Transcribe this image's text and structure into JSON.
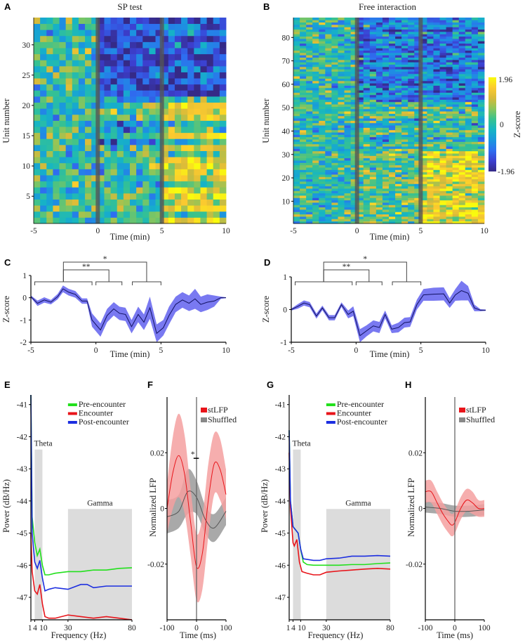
{
  "panels": {
    "A": "A",
    "B": "B",
    "C": "C",
    "D": "D",
    "E": "E",
    "F": "F",
    "G": "G",
    "H": "H"
  },
  "colorbar": {
    "label": "Z-score",
    "ticks": [
      "1.96",
      "0",
      "-1.96"
    ],
    "zlim": [
      -1.96,
      1.96
    ],
    "colormap": [
      "#352a87",
      "#3c3fd0",
      "#2e6ef0",
      "#1a97de",
      "#16b5c4",
      "#38c28f",
      "#8cc65a",
      "#d7ba3a",
      "#fcca2f",
      "#f9fb0e"
    ]
  },
  "chart_data": [
    {
      "panel": "A",
      "type": "heatmap",
      "title": "SP test",
      "xlabel": "Time (min)",
      "ylabel": "Unit number",
      "xlim": [
        -5,
        10
      ],
      "ylim": [
        0.5,
        34.5
      ],
      "xticks": [
        "-5",
        "0",
        "5",
        "10"
      ],
      "yticks": [
        "5",
        "10",
        "15",
        "20",
        "25",
        "30"
      ],
      "units": 34,
      "bin_min": 0.5,
      "event_markers": [
        0,
        5
      ],
      "zlim": [
        -1.96,
        1.96
      ]
    },
    {
      "panel": "B",
      "type": "heatmap",
      "title": "Free interaction",
      "xlabel": "Time (min)",
      "ylabel": "Unit number",
      "xlim": [
        -5,
        10
      ],
      "ylim": [
        0.5,
        88.5
      ],
      "xticks": [
        "-5",
        "0",
        "5",
        "10"
      ],
      "yticks": [
        "10",
        "20",
        "30",
        "40",
        "50",
        "60",
        "70",
        "80"
      ],
      "units": 88,
      "bin_min": 0.5,
      "event_markers": [
        0,
        5
      ],
      "zlim": [
        -1.96,
        1.96
      ]
    },
    {
      "panel": "C",
      "type": "line",
      "xlabel": "Time (min)",
      "ylabel": "Z-score",
      "xlim": [
        -5,
        10
      ],
      "ylim": [
        -2,
        1
      ],
      "xticks": [
        "-5",
        "0",
        "5",
        "10"
      ],
      "yticks": [
        "-2",
        "-1",
        "0",
        "1"
      ],
      "x": [
        -5,
        -4.49,
        -3.97,
        -3.46,
        -2.94,
        -2.53,
        -2.1,
        -1.58,
        -1.07,
        -0.68,
        -0.3,
        0.35,
        0.86,
        1.37,
        1.81,
        2.27,
        2.74,
        3.25,
        3.69,
        4.15,
        4.67,
        5.18,
        5.62,
        6.13,
        6.65,
        7.16,
        7.62,
        8.06,
        8.57,
        9.09,
        9.6,
        10
      ],
      "mean": [
        0.05,
        -0.25,
        -0.1,
        -0.2,
        0.05,
        0.4,
        0.25,
        0.15,
        -0.15,
        -0.15,
        -1.0,
        -1.45,
        -0.8,
        -0.5,
        -0.7,
        -0.75,
        -1.3,
        -0.75,
        -1.1,
        -0.45,
        -1.6,
        -1.35,
        -0.8,
        -0.3,
        -0.1,
        -0.25,
        -0.05,
        -0.3,
        -0.2,
        -0.15,
        0,
        0
      ],
      "sem": [
        0.05,
        0.12,
        0.12,
        0.1,
        0.12,
        0.15,
        0.15,
        0.15,
        0.12,
        0.12,
        0.3,
        0.3,
        0.3,
        0.3,
        0.3,
        0.3,
        0.3,
        0.35,
        0.35,
        0.5,
        0.4,
        0.35,
        0.4,
        0.35,
        0.35,
        0.35,
        0.45,
        0.35,
        0.35,
        0.25,
        0.05,
        0.02
      ],
      "groups": [
        [
          -4.7,
          -0.3
        ],
        [
          0,
          2
        ],
        [
          2.8,
          5
        ]
      ],
      "significance": [
        {
          "from": -2.5,
          "to": 1,
          "label": "**"
        },
        {
          "from": -2.5,
          "to": 3.9,
          "label": "*"
        }
      ]
    },
    {
      "panel": "D",
      "type": "line",
      "xlabel": "Time (min)",
      "ylabel": "Z-score",
      "xlim": [
        -5,
        10
      ],
      "ylim": [
        -1,
        1
      ],
      "xticks": [
        "-5",
        "0",
        "5",
        "10"
      ],
      "yticks": [
        "-1",
        "0",
        "1"
      ],
      "x": [
        -5,
        -4.48,
        -4.02,
        -3.58,
        -3.06,
        -2.6,
        -2.09,
        -1.65,
        -1.13,
        -0.61,
        -0.22,
        0.3,
        0.81,
        1.33,
        1.8,
        2.24,
        2.75,
        3.27,
        3.73,
        4.17,
        4.69,
        5.2,
        5.98,
        6.76,
        7.22,
        7.66,
        8.13,
        8.64,
        9.13,
        9.6,
        10
      ],
      "mean": [
        0,
        0.1,
        0.2,
        0.15,
        -0.2,
        0.05,
        -0.25,
        -0.25,
        0.15,
        -0.15,
        -0.05,
        -0.8,
        -0.65,
        -0.5,
        -0.55,
        -0.15,
        -0.6,
        -0.55,
        -0.4,
        -0.38,
        0.15,
        0.45,
        0.47,
        0.48,
        0.2,
        0.45,
        0.58,
        0.5,
        0.05,
        -0.02,
        -0.02
      ],
      "sem": [
        0.03,
        0.07,
        0.08,
        0.08,
        0.08,
        0.07,
        0.08,
        0.08,
        0.07,
        0.12,
        0.15,
        0.2,
        0.17,
        0.17,
        0.17,
        0.12,
        0.12,
        0.15,
        0.15,
        0.15,
        0.15,
        0.18,
        0.2,
        0.2,
        0.15,
        0.18,
        0.3,
        0.22,
        0.1,
        0.03,
        0.02
      ],
      "groups": [
        [
          -4.7,
          -0.3
        ],
        [
          0,
          2
        ],
        [
          2.8,
          5
        ]
      ],
      "significance": [
        {
          "from": -2.5,
          "to": 1,
          "label": "**"
        },
        {
          "from": -2.5,
          "to": 3.9,
          "label": "*"
        }
      ]
    },
    {
      "panel": "E",
      "type": "line",
      "xlabel": "Frequency (Hz)",
      "ylabel": "Power (dB/Hz)",
      "xlim": [
        1,
        80
      ],
      "ylim": [
        -47.7,
        -40.7
      ],
      "xticks": [
        "1",
        "4",
        "10",
        "30",
        "80"
      ],
      "yticks": [
        "-41",
        "-42",
        "-43",
        "-44",
        "-45",
        "-46",
        "-47"
      ],
      "bands": [
        {
          "label": "Theta",
          "range": [
            4,
            10
          ],
          "top": -42.4
        },
        {
          "label": "Gamma",
          "range": [
            30,
            80
          ],
          "top": -44.25
        }
      ],
      "series": [
        {
          "name": "Pre-encounter",
          "color": "#22e01c",
          "x": [
            1,
            2,
            4,
            6,
            8,
            10,
            12,
            15,
            20,
            30,
            40,
            50,
            60,
            70,
            80
          ],
          "y": [
            -40.7,
            -44.5,
            -45.3,
            -45.7,
            -45.5,
            -46.0,
            -46.3,
            -46.3,
            -46.25,
            -46.2,
            -46.2,
            -46.15,
            -46.15,
            -46.1,
            -46.08
          ]
        },
        {
          "name": "Encounter",
          "color": "#e8141a",
          "x": [
            1,
            2,
            4,
            6,
            8,
            10,
            12,
            15,
            20,
            30,
            40,
            50,
            60,
            70,
            80
          ],
          "y": [
            -45.0,
            -46.2,
            -46.8,
            -46.9,
            -46.6,
            -47.2,
            -47.6,
            -47.65,
            -47.65,
            -47.55,
            -47.6,
            -47.65,
            -47.6,
            -47.65,
            -47.7
          ]
        },
        {
          "name": "Post-encounter",
          "color": "#1c2ee0",
          "x": [
            1,
            2,
            4,
            6,
            8,
            10,
            12,
            15,
            20,
            30,
            40,
            45,
            50,
            60,
            70,
            80
          ],
          "y": [
            -40.7,
            -45.0,
            -45.9,
            -46.1,
            -45.85,
            -46.4,
            -46.8,
            -46.75,
            -46.7,
            -46.75,
            -46.6,
            -46.6,
            -46.7,
            -46.65,
            -46.65,
            -46.65
          ]
        }
      ]
    },
    {
      "panel": "F",
      "type": "line",
      "xlabel": "Time (ms)",
      "ylabel": "Normalized LFP",
      "xlim": [
        -100,
        100
      ],
      "ylim": [
        -0.04,
        0.04
      ],
      "xticks": [
        "-100",
        "0",
        "100"
      ],
      "yticks": [
        "0.02",
        "0",
        "-0.02"
      ],
      "series": [
        {
          "name": "stLFP",
          "color": "#e8141a",
          "band": "#f4a0a0",
          "x": [
            -100,
            -80,
            -60,
            -40,
            -20,
            0,
            20,
            40,
            60,
            80,
            100
          ],
          "y": [
            0,
            0.013,
            0.019,
            0.012,
            -0.005,
            -0.021,
            -0.016,
            0.003,
            0.016,
            0.014,
            0.005
          ],
          "sem": [
            0.009,
            0.013,
            0.015,
            0.014,
            0.012,
            0.012,
            0.013,
            0.013,
            0.011,
            0.011,
            0.009
          ]
        },
        {
          "name": "Shuffled",
          "color": "#555555",
          "band": "#9a9a9a",
          "x": [
            -100,
            -60,
            -30,
            0,
            30,
            60,
            100
          ],
          "y": [
            -0.003,
            -0.001,
            0.006,
            0.004,
            -0.004,
            -0.007,
            -0.001
          ],
          "sem": [
            0.006,
            0.006,
            0.008,
            0.006,
            0.005,
            0.005,
            0.005
          ]
        }
      ],
      "significance": {
        "range": [
          -10,
          8
        ],
        "y": 0.018,
        "label": "*"
      }
    },
    {
      "panel": "G",
      "type": "line",
      "xlabel": "Frequency (Hz)",
      "ylabel": "Power (dB/Hz)",
      "xlim": [
        1,
        80
      ],
      "ylim": [
        -47.7,
        -40.7
      ],
      "xticks": [
        "1",
        "4",
        "10",
        "30",
        "80"
      ],
      "yticks": [
        "-41",
        "-42",
        "-43",
        "-44",
        "-45",
        "-46",
        "-47"
      ],
      "bands": [
        {
          "label": "Theta",
          "range": [
            4,
            10
          ],
          "top": -42.4
        },
        {
          "label": "Gamma",
          "range": [
            30,
            80
          ],
          "top": -44.25
        }
      ],
      "series": [
        {
          "name": "Pre-encounter",
          "color": "#22e01c",
          "x": [
            1,
            2,
            4,
            6,
            8,
            10,
            12,
            15,
            20,
            30,
            40,
            50,
            60,
            70,
            80
          ],
          "y": [
            -41.8,
            -44.0,
            -44.8,
            -44.9,
            -45.0,
            -45.5,
            -45.9,
            -45.98,
            -46.0,
            -46.0,
            -46.0,
            -45.98,
            -45.98,
            -45.95,
            -45.93
          ]
        },
        {
          "name": "Encounter",
          "color": "#e8141a",
          "x": [
            1,
            2,
            4,
            5,
            7,
            9,
            11,
            15,
            20,
            25,
            30,
            40,
            50,
            60,
            70,
            80
          ],
          "y": [
            -42.5,
            -44.2,
            -45.3,
            -45.4,
            -45.2,
            -45.9,
            -46.2,
            -46.25,
            -46.3,
            -46.3,
            -46.22,
            -46.18,
            -46.15,
            -46.12,
            -46.1,
            -46.12
          ]
        },
        {
          "name": "Post-encounter",
          "color": "#1c2ee0",
          "x": [
            1,
            2,
            4,
            6,
            8,
            10,
            12,
            20,
            25,
            30,
            40,
            50,
            60,
            70,
            80
          ],
          "y": [
            -41.8,
            -44.0,
            -44.8,
            -44.9,
            -45.0,
            -45.5,
            -45.8,
            -45.85,
            -45.85,
            -45.8,
            -45.78,
            -45.72,
            -45.72,
            -45.7,
            -45.72
          ]
        }
      ]
    },
    {
      "panel": "H",
      "type": "line",
      "xlabel": "Time (ms)",
      "ylabel": "Normalized LFP",
      "xlim": [
        -100,
        100
      ],
      "ylim": [
        -0.04,
        0.04
      ],
      "xticks": [
        "-100",
        "0",
        "100"
      ],
      "yticks": [
        "0.02",
        "0",
        "-0.02"
      ],
      "series": [
        {
          "name": "stLFP",
          "color": "#e8141a",
          "band": "#f4a0a0",
          "x": [
            -100,
            -80,
            -60,
            -40,
            -20,
            -10,
            0,
            20,
            40,
            60,
            80,
            100
          ],
          "y": [
            0.006,
            0.006,
            0.002,
            -0.002,
            -0.005,
            -0.006,
            -0.005,
            0,
            0.003,
            0.002,
            0,
            0
          ],
          "sem": [
            0.004,
            0.004,
            0.004,
            0.004,
            0.004,
            0.004,
            0.004,
            0.004,
            0.004,
            0.004,
            0.003,
            0.003
          ]
        },
        {
          "name": "Shuffled",
          "color": "#555555",
          "band": "#9a9a9a",
          "x": [
            -100,
            -50,
            0,
            50,
            100
          ],
          "y": [
            0.0005,
            0,
            -0.001,
            -0.001,
            -0.0005
          ],
          "sem": [
            0.002,
            0.002,
            0.002,
            0.002,
            0.002
          ]
        }
      ]
    }
  ]
}
